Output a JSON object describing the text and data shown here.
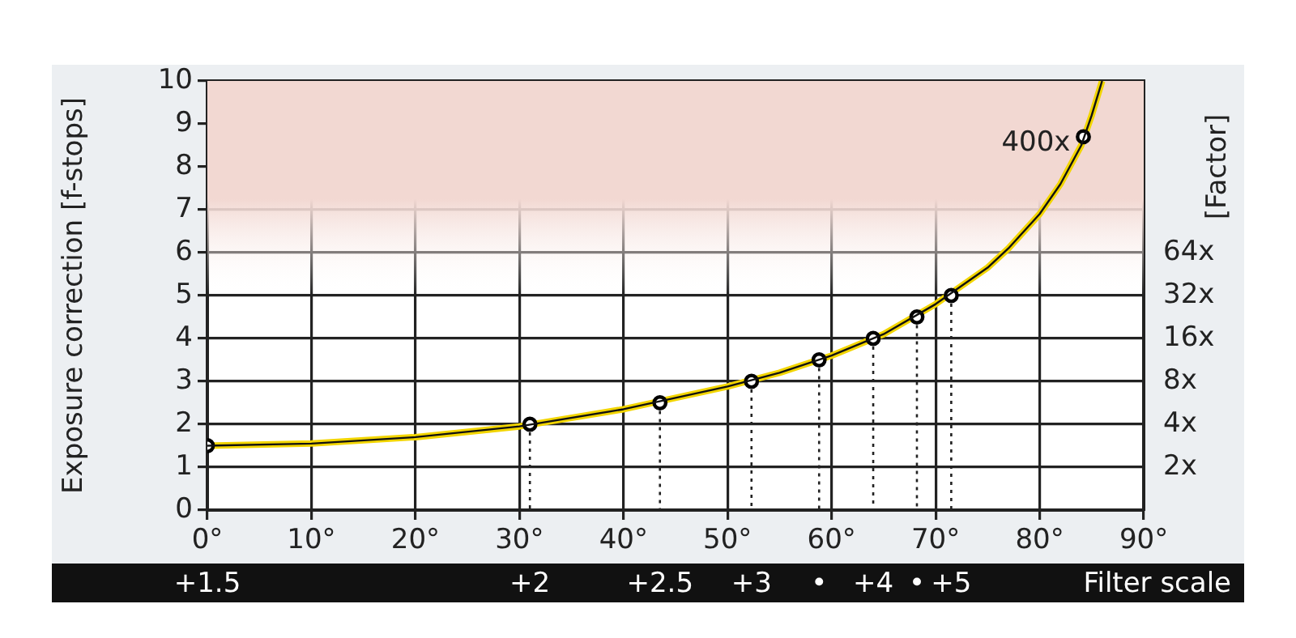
{
  "chart_data": {
    "type": "line",
    "xlabel": null,
    "ylabel": "Exposure correction [f-stops]",
    "y2label": "[Factor]",
    "xlim": [
      0,
      90
    ],
    "xticks": [
      {
        "value": 0,
        "label": "0°"
      },
      {
        "value": 10,
        "label": "10°"
      },
      {
        "value": 20,
        "label": "20°"
      },
      {
        "value": 30,
        "label": "30°"
      },
      {
        "value": 40,
        "label": "40°"
      },
      {
        "value": 50,
        "label": "50°"
      },
      {
        "value": 60,
        "label": "60°"
      },
      {
        "value": 70,
        "label": "70°"
      },
      {
        "value": 80,
        "label": "80°"
      },
      {
        "value": 90,
        "label": "90°"
      }
    ],
    "ylim": [
      0,
      10
    ],
    "yticks": [
      0,
      1,
      2,
      3,
      4,
      5,
      6,
      7,
      8,
      9,
      10
    ],
    "y2lim": [
      1,
      1024
    ],
    "y2ticks": [
      {
        "value": 2,
        "label": "2x"
      },
      {
        "value": 4,
        "label": "4x"
      },
      {
        "value": 8,
        "label": "8x"
      },
      {
        "value": 16,
        "label": "16x"
      },
      {
        "value": 32,
        "label": "32x"
      },
      {
        "value": 64,
        "label": "64x"
      }
    ],
    "log": "y2",
    "grid": true,
    "legend": false,
    "bands": [
      {
        "axis": "y",
        "from": 5,
        "to": 10,
        "color": "#f2d8d2"
      }
    ],
    "annotations": [
      {
        "text": "400x",
        "x": 84.2,
        "y": 8.7
      },
      {
        "text": "+1.5",
        "x": 0,
        "y": 0
      },
      {
        "text": "+2",
        "x": 31,
        "y": 0
      },
      {
        "text": "+2.5",
        "x": 43.5,
        "y": 0
      },
      {
        "text": "+3",
        "x": 52.3,
        "y": 0
      },
      {
        "text": "•",
        "x": 58.8,
        "y": 0
      },
      {
        "text": "+4",
        "x": 64,
        "y": 0
      },
      {
        "text": "•",
        "x": 68.2,
        "y": 0
      },
      {
        "text": "+5",
        "x": 71.5,
        "y": 0
      },
      "Filter scale"
    ],
    "series": [
      {
        "color": "#f2d500",
        "marker": "none",
        "line_style": "solid",
        "x": [
          0,
          10,
          20,
          30,
          40,
          50,
          55,
          60,
          65,
          70,
          75,
          77,
          80,
          82,
          84,
          85,
          86
        ],
        "values": [
          1.5,
          1.55,
          1.7,
          1.95,
          2.35,
          2.88,
          3.2,
          3.6,
          4.1,
          4.8,
          5.65,
          6.1,
          6.9,
          7.6,
          8.5,
          9.2,
          10
        ]
      },
      {
        "type": "scatter",
        "color": "#000000",
        "marker": "circle",
        "x": [
          0,
          31,
          43.5,
          52.3,
          58.8,
          64,
          68.2,
          71.5,
          84.2
        ],
        "values": [
          1.5,
          2,
          2.5,
          3,
          3.5,
          4,
          4.5,
          5,
          8.7
        ]
      },
      {
        "color": "#222222",
        "marker": "none",
        "line_style": "dotted",
        "x": [
          0,
          0,
          null,
          31,
          31,
          null,
          43.5,
          43.5,
          null,
          52.3,
          52.3,
          null,
          58.8,
          58.8,
          null,
          64,
          64,
          null,
          68.2,
          68.2,
          null,
          71.5,
          71.5
        ],
        "values": [
          1.5,
          0,
          null,
          2,
          0,
          null,
          2.5,
          0,
          null,
          3,
          0,
          null,
          3.5,
          0,
          null,
          4,
          0,
          null,
          4.5,
          0,
          null,
          5,
          0
        ]
      }
    ]
  }
}
